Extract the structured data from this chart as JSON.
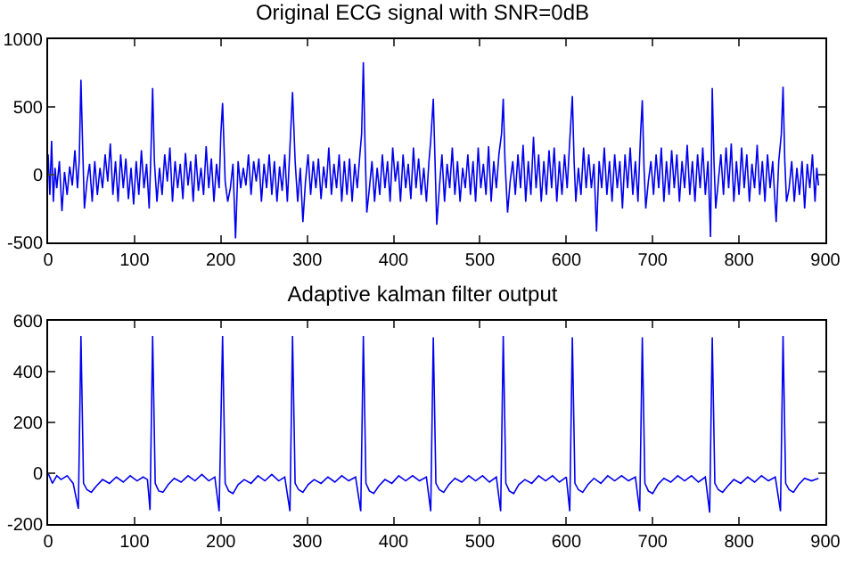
{
  "chart_data": [
    {
      "type": "line",
      "title": "Original ECG signal with SNR=0dB",
      "color": "#0000ee",
      "xlim": [
        0,
        900
      ],
      "xticks": [
        0,
        100,
        200,
        300,
        400,
        500,
        600,
        700,
        800,
        900
      ],
      "ylim": [
        -500,
        1000
      ],
      "yticks": [
        -500,
        0,
        500,
        1000
      ],
      "x": [
        0,
        2,
        4,
        6,
        8,
        10,
        13,
        16,
        19,
        22,
        25,
        28,
        31,
        34,
        36,
        38,
        40,
        42,
        45,
        48,
        51,
        54,
        57,
        60,
        63,
        66,
        69,
        72,
        75,
        78,
        81,
        84,
        87,
        90,
        93,
        96,
        99,
        102,
        105,
        108,
        111,
        114,
        117,
        119,
        121,
        123,
        126,
        129,
        132,
        135,
        138,
        141,
        144,
        147,
        150,
        153,
        156,
        159,
        162,
        165,
        168,
        171,
        174,
        177,
        180,
        183,
        186,
        189,
        192,
        195,
        198,
        200,
        202,
        205,
        208,
        211,
        214,
        217,
        220,
        223,
        226,
        229,
        232,
        235,
        238,
        241,
        244,
        247,
        250,
        253,
        256,
        259,
        262,
        265,
        268,
        271,
        274,
        277,
        280,
        283,
        286,
        289,
        292,
        295,
        298,
        301,
        304,
        307,
        310,
        313,
        316,
        319,
        322,
        325,
        328,
        331,
        334,
        337,
        340,
        343,
        346,
        349,
        352,
        355,
        358,
        361,
        363,
        365,
        367,
        369,
        372,
        375,
        378,
        381,
        384,
        387,
        390,
        393,
        396,
        399,
        402,
        405,
        408,
        411,
        414,
        417,
        420,
        423,
        426,
        429,
        432,
        435,
        438,
        441,
        443,
        446,
        448,
        450,
        453,
        456,
        459,
        462,
        465,
        468,
        471,
        474,
        477,
        480,
        483,
        486,
        489,
        492,
        495,
        498,
        501,
        504,
        507,
        510,
        513,
        516,
        519,
        522,
        525,
        527,
        529,
        532,
        535,
        538,
        541,
        544,
        547,
        550,
        553,
        556,
        559,
        562,
        565,
        568,
        571,
        574,
        577,
        580,
        583,
        586,
        589,
        592,
        595,
        598,
        601,
        604,
        607,
        609,
        611,
        614,
        617,
        620,
        623,
        626,
        629,
        632,
        635,
        638,
        641,
        644,
        647,
        650,
        653,
        656,
        659,
        662,
        665,
        668,
        671,
        674,
        677,
        680,
        683,
        686,
        688,
        690,
        692,
        695,
        698,
        701,
        704,
        707,
        710,
        713,
        716,
        719,
        722,
        725,
        728,
        731,
        734,
        737,
        740,
        743,
        746,
        749,
        752,
        755,
        758,
        761,
        764,
        767,
        769,
        771,
        773,
        776,
        779,
        782,
        785,
        788,
        791,
        794,
        797,
        800,
        803,
        806,
        809,
        812,
        815,
        818,
        821,
        824,
        827,
        830,
        833,
        836,
        839,
        843,
        846,
        849,
        851,
        853,
        855,
        858,
        861,
        864,
        867,
        870,
        873,
        876,
        879,
        882,
        885,
        888,
        890,
        892
      ],
      "values": [
        150,
        -150,
        250,
        -200,
        50,
        -100,
        100,
        -270,
        20,
        -150,
        60,
        -80,
        180,
        -100,
        100,
        700,
        200,
        -250,
        -50,
        80,
        -200,
        100,
        -150,
        50,
        -100,
        150,
        -50,
        230,
        -150,
        100,
        -200,
        150,
        -100,
        120,
        -180,
        50,
        -220,
        100,
        -150,
        180,
        -100,
        80,
        -250,
        150,
        640,
        100,
        -200,
        50,
        -150,
        150,
        -50,
        200,
        -200,
        100,
        -100,
        80,
        -180,
        160,
        -80,
        100,
        -200,
        150,
        -120,
        50,
        -150,
        210,
        -100,
        120,
        -200,
        80,
        -100,
        300,
        530,
        -50,
        -200,
        -100,
        80,
        -470,
        100,
        -100,
        50,
        -80,
        150,
        -150,
        100,
        -50,
        120,
        -200,
        80,
        -100,
        150,
        -150,
        100,
        -200,
        60,
        -120,
        150,
        -200,
        200,
        610,
        100,
        -200,
        50,
        -350,
        -50,
        150,
        -150,
        100,
        -100,
        120,
        -180,
        60,
        -100,
        200,
        -150,
        80,
        -100,
        150,
        -200,
        100,
        -150,
        120,
        -200,
        80,
        -100,
        150,
        300,
        830,
        200,
        -280,
        -100,
        100,
        -200,
        50,
        -150,
        150,
        -100,
        100,
        -200,
        200,
        -50,
        100,
        -200,
        150,
        -100,
        80,
        -180,
        200,
        -100,
        120,
        -150,
        50,
        -200,
        100,
        250,
        560,
        100,
        -370,
        -100,
        150,
        -200,
        80,
        -100,
        200,
        -150,
        100,
        -200,
        50,
        -100,
        150,
        -150,
        100,
        -200,
        200,
        -100,
        80,
        -150,
        210,
        -200,
        100,
        -100,
        150,
        300,
        560,
        100,
        -280,
        -50,
        100,
        -150,
        150,
        -100,
        220,
        -200,
        100,
        -150,
        280,
        -100,
        150,
        -200,
        100,
        -150,
        180,
        -100,
        200,
        -200,
        100,
        -150,
        150,
        -100,
        250,
        580,
        100,
        -200,
        50,
        -150,
        200,
        -100,
        150,
        -100,
        80,
        -420,
        100,
        -100,
        200,
        -150,
        100,
        -200,
        150,
        -100,
        100,
        -250,
        150,
        -100,
        200,
        -150,
        100,
        -200,
        300,
        550,
        50,
        -250,
        -50,
        100,
        -150,
        150,
        -100,
        200,
        -200,
        100,
        -150,
        180,
        -100,
        150,
        -200,
        100,
        -100,
        220,
        -150,
        100,
        -200,
        150,
        -100,
        200,
        -150,
        100,
        -460,
        640,
        100,
        -250,
        -50,
        150,
        -150,
        200,
        -100,
        230,
        -200,
        100,
        -150,
        200,
        -100,
        150,
        -200,
        80,
        -100,
        220,
        -150,
        100,
        -200,
        150,
        -100,
        100,
        -350,
        100,
        300,
        650,
        100,
        -200,
        -100,
        100,
        -200,
        50,
        -150,
        100,
        -250,
        80,
        -100,
        150,
        -200,
        50,
        -80
      ]
    },
    {
      "type": "line",
      "title": "Adaptive kalman filter output",
      "color": "#0000ee",
      "xlim": [
        0,
        900
      ],
      "xticks": [
        0,
        100,
        200,
        300,
        400,
        500,
        600,
        700,
        800,
        900
      ],
      "ylim": [
        -200,
        600
      ],
      "yticks": [
        -200,
        0,
        200,
        400,
        600
      ],
      "x": [
        0,
        5,
        10,
        15,
        22,
        29,
        35,
        38,
        41,
        45,
        50,
        56,
        63,
        71,
        79,
        87,
        95,
        103,
        110,
        115,
        118,
        121,
        124,
        128,
        133,
        139,
        146,
        154,
        162,
        170,
        178,
        186,
        193,
        198,
        202,
        205,
        209,
        214,
        220,
        227,
        235,
        243,
        251,
        259,
        267,
        274,
        280,
        283,
        286,
        290,
        295,
        301,
        308,
        316,
        324,
        332,
        340,
        348,
        356,
        362,
        365,
        368,
        372,
        377,
        383,
        390,
        398,
        406,
        414,
        422,
        430,
        438,
        443,
        446,
        449,
        453,
        458,
        464,
        471,
        479,
        487,
        495,
        503,
        511,
        519,
        524,
        527,
        530,
        534,
        539,
        545,
        552,
        560,
        568,
        576,
        584,
        592,
        600,
        604,
        607,
        610,
        614,
        619,
        625,
        632,
        640,
        648,
        656,
        664,
        672,
        680,
        685,
        688,
        691,
        695,
        700,
        706,
        713,
        721,
        729,
        737,
        745,
        753,
        761,
        766,
        769,
        772,
        776,
        781,
        787,
        794,
        802,
        810,
        818,
        826,
        834,
        842,
        848,
        851,
        854,
        858,
        863,
        869,
        876,
        884,
        892
      ],
      "values": [
        0,
        -40,
        -10,
        -25,
        -10,
        -40,
        -140,
        540,
        -40,
        -65,
        -75,
        -50,
        -25,
        -40,
        -15,
        -35,
        -10,
        -30,
        -15,
        -25,
        -145,
        540,
        -40,
        -70,
        -75,
        -45,
        -20,
        -35,
        -10,
        -30,
        -5,
        -30,
        -15,
        -150,
        540,
        -40,
        -70,
        -80,
        -45,
        -25,
        -40,
        -10,
        -30,
        -5,
        -30,
        -15,
        -150,
        540,
        -40,
        -65,
        -75,
        -45,
        -25,
        -40,
        -15,
        -35,
        -10,
        -30,
        -15,
        -150,
        540,
        -40,
        -70,
        -80,
        -50,
        -25,
        -40,
        -10,
        -30,
        -10,
        -30,
        -15,
        -150,
        535,
        -40,
        -65,
        -75,
        -45,
        -20,
        -35,
        -10,
        -30,
        -10,
        -35,
        -15,
        -150,
        540,
        -40,
        -70,
        -80,
        -45,
        -25,
        -40,
        -10,
        -30,
        -10,
        -35,
        -15,
        -150,
        535,
        -40,
        -65,
        -75,
        -45,
        -20,
        -40,
        -10,
        -30,
        -10,
        -30,
        -15,
        -150,
        535,
        -40,
        -70,
        -80,
        -45,
        -20,
        -35,
        -10,
        -30,
        -10,
        -35,
        -15,
        -155,
        535,
        -40,
        -65,
        -75,
        -50,
        -25,
        -40,
        -15,
        -35,
        -10,
        -30,
        -15,
        -150,
        540,
        -40,
        -65,
        -75,
        -45,
        -20,
        -30,
        -20
      ]
    }
  ]
}
